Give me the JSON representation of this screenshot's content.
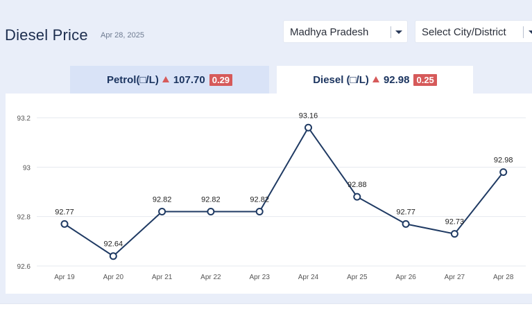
{
  "header": {
    "title": "Diesel Price",
    "date": "Apr 28, 2025"
  },
  "filters": {
    "state": "Madhya Pradesh",
    "city_placeholder": "Select City/District"
  },
  "tabs": [
    {
      "label": "Petrol(□/L)",
      "price": "107.70",
      "change": "0.29",
      "trend": "up",
      "active": false
    },
    {
      "label": "Diesel (□/L)",
      "price": "92.98",
      "change": "0.25",
      "trend": "up",
      "active": true
    }
  ],
  "colors": {
    "line": "#1f3a63",
    "badge": "#d65a5a",
    "grid": "#e6e9ef",
    "tick": "#555555"
  },
  "chart_data": {
    "type": "line",
    "categories": [
      "Apr 19",
      "Apr 20",
      "Apr 21",
      "Apr 22",
      "Apr 23",
      "Apr 24",
      "Apr 25",
      "Apr 26",
      "Apr 27",
      "Apr 28"
    ],
    "values": [
      92.77,
      92.64,
      92.82,
      92.82,
      92.82,
      93.16,
      92.88,
      92.77,
      92.73,
      92.98
    ],
    "value_labels": [
      "92.77",
      "92.64",
      "92.82",
      "92.82",
      "92.82",
      "93.16",
      "92.88",
      "92.77",
      "92.73",
      "92.98"
    ],
    "yticks": [
      92.6,
      92.8,
      93,
      93.2
    ],
    "ytick_labels": [
      "92.6",
      "92.8",
      "93",
      "93.2"
    ],
    "ylim": [
      92.6,
      93.2
    ],
    "grid": true,
    "legend": "none",
    "title": "",
    "xlabel": "",
    "ylabel": ""
  }
}
